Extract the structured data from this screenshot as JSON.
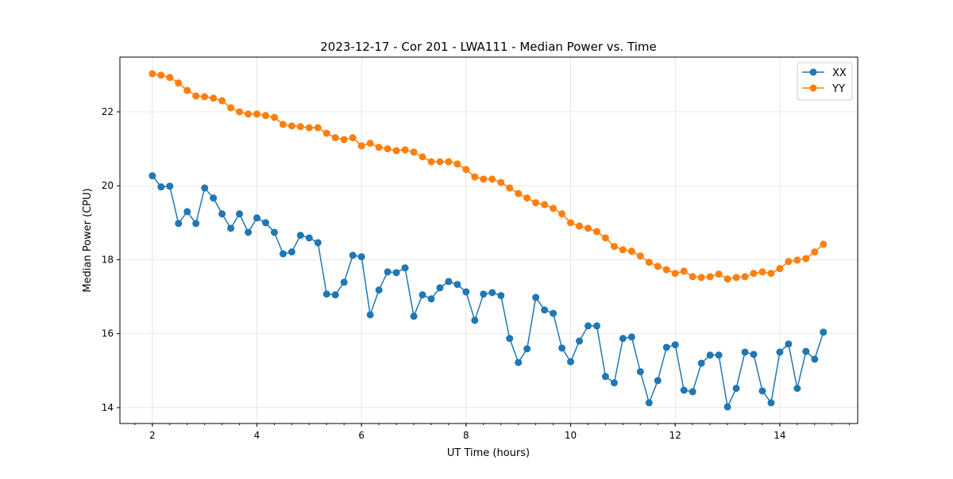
{
  "chart_data": {
    "type": "line",
    "title": "2023-12-17 - Cor 201 - LWA111 - Median Power vs. Time",
    "xlabel": "UT Time (hours)",
    "ylabel": "Median Power (CPU)",
    "xlim": [
      1.38,
      15.49
    ],
    "ylim": [
      13.57,
      23.48
    ],
    "xticks": [
      2,
      4,
      6,
      8,
      10,
      12,
      14
    ],
    "yticks": [
      14,
      16,
      18,
      20,
      22
    ],
    "x_minor_step": 0.3333,
    "grid": true,
    "legend_position": "top-right",
    "x_start": 2,
    "x_step": 0.16667,
    "series": [
      {
        "name": "XX",
        "color": "#1f77b4",
        "values": [
          20.27,
          19.97,
          19.99,
          18.98,
          19.3,
          18.98,
          19.94,
          19.67,
          19.24,
          18.85,
          19.24,
          18.74,
          19.13,
          19.0,
          18.74,
          18.16,
          18.21,
          18.66,
          18.59,
          18.46,
          17.07,
          17.05,
          17.39,
          18.12,
          18.08,
          16.51,
          17.18,
          17.67,
          17.65,
          17.78,
          16.47,
          17.05,
          16.94,
          17.24,
          17.41,
          17.33,
          17.13,
          16.36,
          17.07,
          17.11,
          17.03,
          15.87,
          15.22,
          15.59,
          16.98,
          16.64,
          16.55,
          15.61,
          15.24,
          15.8,
          16.21,
          16.21,
          14.84,
          14.67,
          15.87,
          15.91,
          14.97,
          14.13,
          14.73,
          15.63,
          15.7,
          14.47,
          14.43,
          15.2,
          15.42,
          15.42,
          14.02,
          14.52,
          15.5,
          15.44,
          14.45,
          14.13,
          15.5,
          15.72,
          14.52,
          15.52,
          15.31,
          16.04
        ]
      },
      {
        "name": "YY",
        "color": "#ff7f0e",
        "values": [
          23.03,
          22.99,
          22.93,
          22.78,
          22.58,
          22.43,
          22.41,
          22.37,
          22.3,
          22.11,
          22.0,
          21.94,
          21.94,
          21.9,
          21.85,
          21.66,
          21.62,
          21.6,
          21.57,
          21.57,
          21.42,
          21.3,
          21.25,
          21.3,
          21.08,
          21.15,
          21.04,
          21.0,
          20.95,
          20.97,
          20.91,
          20.78,
          20.65,
          20.65,
          20.65,
          20.59,
          20.44,
          20.24,
          20.18,
          20.18,
          20.09,
          19.94,
          19.79,
          19.67,
          19.54,
          19.49,
          19.39,
          19.24,
          19.0,
          18.91,
          18.85,
          18.76,
          18.59,
          18.36,
          18.27,
          18.23,
          18.1,
          17.93,
          17.82,
          17.73,
          17.63,
          17.69,
          17.54,
          17.52,
          17.54,
          17.61,
          17.48,
          17.52,
          17.54,
          17.63,
          17.67,
          17.63,
          17.76,
          17.95,
          17.99,
          18.03,
          18.21,
          18.42
        ]
      }
    ]
  }
}
